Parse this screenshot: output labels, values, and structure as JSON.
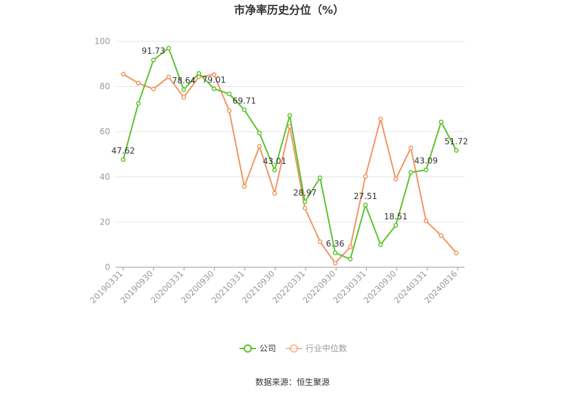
{
  "chart_data": {
    "type": "line",
    "title": "市净率历史分位（%）",
    "ylim": [
      0,
      100
    ],
    "yticks": [
      0,
      20,
      40,
      60,
      80,
      100
    ],
    "x_tick_labels": [
      "20190331",
      "20190930",
      "20200331",
      "20200930",
      "20210331",
      "20210930",
      "20220331",
      "20220930",
      "20230331",
      "20230930",
      "20240331",
      "20240816"
    ],
    "grid": "horizontal",
    "legend_position": "bottom-center",
    "series": [
      {
        "name": "公司",
        "color": "#5ac229",
        "values": [
          47.62,
          72.5,
          91.73,
          97.0,
          78.64,
          85.8,
          79.01,
          76.7,
          69.71,
          59.4,
          43.01,
          67.2,
          28.97,
          39.6,
          6.36,
          3.6,
          27.51,
          10.0,
          18.51,
          42.0,
          43.09,
          64.3,
          51.72
        ]
      },
      {
        "name": "行业中位数",
        "color": "#f0945f",
        "values": [
          85.5,
          81.5,
          78.9,
          84.2,
          75.2,
          84.3,
          85.3,
          69.3,
          35.7,
          53.5,
          32.7,
          62.3,
          26.2,
          11.3,
          1.8,
          9.0,
          40.2,
          65.6,
          39.0,
          52.8,
          20.5,
          14.0,
          6.3
        ]
      }
    ],
    "data_labels": [
      {
        "index": 0,
        "text": "47.62"
      },
      {
        "index": 2,
        "text": "91.73"
      },
      {
        "index": 4,
        "text": "78.64"
      },
      {
        "index": 6,
        "text": "79.01"
      },
      {
        "index": 8,
        "text": "69.71"
      },
      {
        "index": 10,
        "text": "43.01"
      },
      {
        "index": 12,
        "text": "28.97"
      },
      {
        "index": 14,
        "text": "6.36"
      },
      {
        "index": 16,
        "text": "27.51"
      },
      {
        "index": 18,
        "text": "18.51"
      },
      {
        "index": 20,
        "text": "43.09"
      },
      {
        "index": 22,
        "text": "51.72"
      }
    ]
  },
  "source_text": "数据来源：恒生聚源"
}
